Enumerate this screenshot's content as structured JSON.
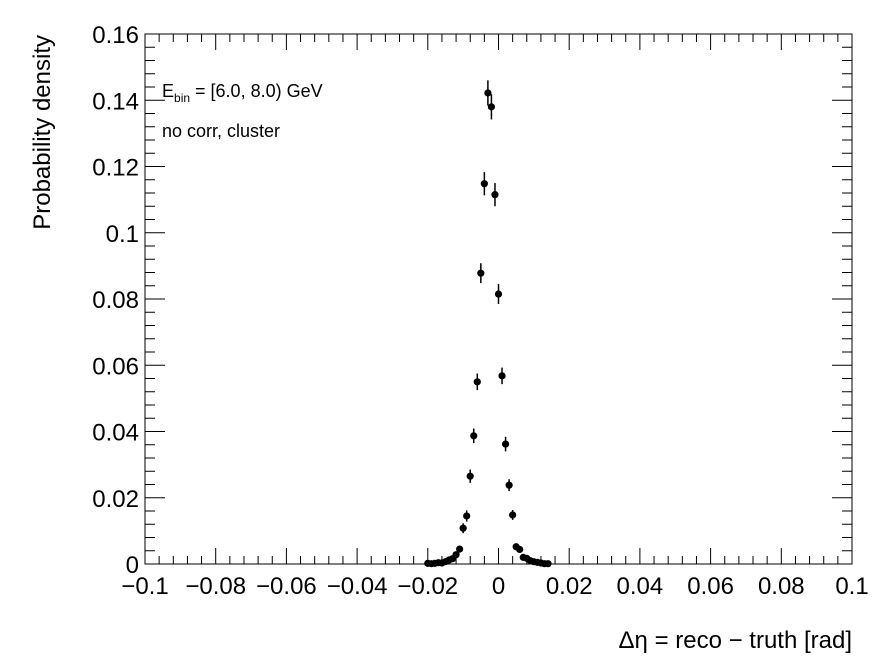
{
  "chart_data": {
    "type": "scatter",
    "xlabel": "Δη = reco − truth  [rad]",
    "ylabel": "Probability density",
    "xlim": [
      -0.1,
      0.1
    ],
    "ylim": [
      0,
      0.16
    ],
    "x_tick_labels": [
      "−0.1",
      "−0.08",
      "−0.06",
      "−0.04",
      "−0.02",
      "0",
      "0.02",
      "0.04",
      "0.06",
      "0.08",
      "0.1"
    ],
    "y_tick_labels": [
      "0",
      "0.02",
      "0.04",
      "0.06",
      "0.08",
      "0.1",
      "0.12",
      "0.14",
      "0.16"
    ],
    "x_ticks": [
      -0.1,
      -0.08,
      -0.06,
      -0.04,
      -0.02,
      0,
      0.02,
      0.04,
      0.06,
      0.08,
      0.1
    ],
    "y_ticks": [
      0,
      0.02,
      0.04,
      0.06,
      0.08,
      0.1,
      0.12,
      0.14,
      0.16
    ],
    "grid": false,
    "marker_color": "#000000",
    "annotations": {
      "energy_bin_main": "E",
      "energy_bin_sub": "bin",
      "energy_bin_rest": " = [6.0, 8.0) GeV",
      "correction": "no corr, cluster"
    },
    "points": [
      {
        "x": -0.02,
        "y": 0.0002,
        "err": 0.0003
      },
      {
        "x": -0.019,
        "y": 0.0001,
        "err": 0.0003
      },
      {
        "x": -0.018,
        "y": 0.0002,
        "err": 0.0003
      },
      {
        "x": -0.017,
        "y": 0.0004,
        "err": 0.0004
      },
      {
        "x": -0.016,
        "y": 0.0003,
        "err": 0.0004
      },
      {
        "x": -0.015,
        "y": 0.0007,
        "err": 0.0005
      },
      {
        "x": -0.014,
        "y": 0.0012,
        "err": 0.0006
      },
      {
        "x": -0.013,
        "y": 0.0016,
        "err": 0.0007
      },
      {
        "x": -0.012,
        "y": 0.0028,
        "err": 0.0008
      },
      {
        "x": -0.011,
        "y": 0.0045,
        "err": 0.001
      },
      {
        "x": -0.01,
        "y": 0.0108,
        "err": 0.0015
      },
      {
        "x": -0.009,
        "y": 0.0145,
        "err": 0.0017
      },
      {
        "x": -0.008,
        "y": 0.0265,
        "err": 0.002
      },
      {
        "x": -0.007,
        "y": 0.0387,
        "err": 0.0022
      },
      {
        "x": -0.006,
        "y": 0.055,
        "err": 0.0025
      },
      {
        "x": -0.005,
        "y": 0.0878,
        "err": 0.003
      },
      {
        "x": -0.004,
        "y": 0.1148,
        "err": 0.0035
      },
      {
        "x": -0.003,
        "y": 0.1422,
        "err": 0.0038
      },
      {
        "x": -0.002,
        "y": 0.138,
        "err": 0.0038
      },
      {
        "x": -0.001,
        "y": 0.1115,
        "err": 0.0035
      },
      {
        "x": 0.0,
        "y": 0.0815,
        "err": 0.003
      },
      {
        "x": 0.001,
        "y": 0.0568,
        "err": 0.0025
      },
      {
        "x": 0.002,
        "y": 0.0362,
        "err": 0.0022
      },
      {
        "x": 0.003,
        "y": 0.0238,
        "err": 0.0018
      },
      {
        "x": 0.004,
        "y": 0.0148,
        "err": 0.0015
      },
      {
        "x": 0.005,
        "y": 0.0052,
        "err": 0.001
      },
      {
        "x": 0.006,
        "y": 0.0044,
        "err": 0.0009
      },
      {
        "x": 0.007,
        "y": 0.002,
        "err": 0.0007
      },
      {
        "x": 0.008,
        "y": 0.0017,
        "err": 0.0006
      },
      {
        "x": 0.009,
        "y": 0.001,
        "err": 0.0005
      },
      {
        "x": 0.01,
        "y": 0.0007,
        "err": 0.0004
      },
      {
        "x": 0.011,
        "y": 0.0005,
        "err": 0.0004
      },
      {
        "x": 0.012,
        "y": 0.0003,
        "err": 0.0003
      },
      {
        "x": 0.013,
        "y": 0.0001,
        "err": 0.0003
      },
      {
        "x": 0.014,
        "y": 0.0001,
        "err": 0.0003
      }
    ]
  }
}
